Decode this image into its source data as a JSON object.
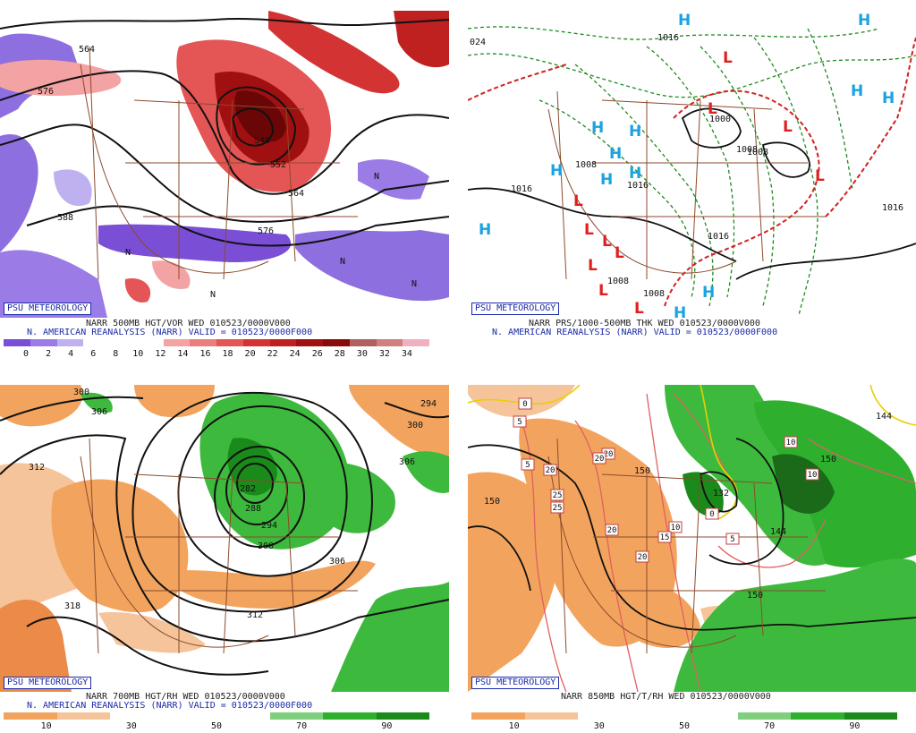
{
  "panels": [
    {
      "badge": "PSU METEOROLOGY",
      "caption1": "NARR 500MB HGT/VOR WED 010523/0000V000",
      "caption2": "N. AMERICAN REANALYSIS (NARR) VALID = 010523/0000F000",
      "colorbar": [
        "#7a4fd6",
        "#9b7be6",
        "#bfb0f0",
        "#ffffff",
        "#ffffff",
        "#ffffff",
        "#f3a3a3",
        "#ec7d7d",
        "#e45555",
        "#d43333",
        "#bf2020",
        "#a01010",
        "#8a0a0a",
        "#b06060",
        "#d08080",
        "#f0b0c0"
      ],
      "ticks": [
        "0",
        "2",
        "4",
        "6",
        "8",
        "10",
        "12",
        "14",
        "16",
        "18",
        "20",
        "22",
        "24",
        "26",
        "28",
        "30",
        "32",
        "34"
      ],
      "labels": [
        "564",
        "576",
        "540",
        "552",
        "564",
        "576",
        "588",
        "N",
        "N",
        "N",
        "N",
        "N"
      ]
    },
    {
      "badge": "PSU METEOROLOGY",
      "caption1": "NARR PRS/1000-500MB THK WED 010523/0000V000",
      "caption2": "N. AMERICAN REANALYSIS (NARR) VALID = 010523/0000F000",
      "labels": [
        "024",
        "1016",
        "1016",
        "1008",
        "1000",
        "1008",
        "1016",
        "1016",
        "1016",
        "1008",
        "1008",
        "1008"
      ],
      "highs": [
        "H",
        "H",
        "H",
        "H",
        "H",
        "H",
        "H",
        "H",
        "H",
        "H",
        "H",
        "H",
        "H"
      ],
      "lows": [
        "L",
        "L",
        "L",
        "L",
        "L",
        "L",
        "L",
        "L",
        "L",
        "L",
        "L"
      ]
    },
    {
      "badge": "PSU METEOROLOGY",
      "caption1": "NARR 700MB HGT/RH WED 010523/0000V000",
      "caption2": "N. AMERICAN REANALYSIS (NARR) VALID = 010523/0000F000",
      "colorbar": [
        "#f2a45e",
        "#f5c49a",
        "#ffffff",
        "#ffffff",
        "#ffffff",
        "#7fcf7f",
        "#2eb02e",
        "#1a8a1a"
      ],
      "ticks": [
        "10",
        "30",
        "50",
        "70",
        "90"
      ],
      "labels": [
        "300",
        "306",
        "312",
        "318",
        "282",
        "288",
        "294",
        "300",
        "306",
        "312",
        "306",
        "294",
        "300"
      ]
    },
    {
      "badge": "PSU METEOROLOGY",
      "caption1": "NARR 850MB HGT/T/RH WED 010523/0000V000",
      "caption2": "",
      "colorbar": [
        "#f2a45e",
        "#f5c49a",
        "#ffffff",
        "#ffffff",
        "#ffffff",
        "#7fcf7f",
        "#2eb02e",
        "#1a8a1a"
      ],
      "ticks": [
        "10",
        "30",
        "50",
        "70",
        "90"
      ],
      "labels": [
        "150",
        "150",
        "132",
        "144",
        "150",
        "144",
        "150"
      ],
      "boxes": [
        "5",
        "5",
        "20",
        "20",
        "20",
        "20",
        "25",
        "25",
        "10",
        "20",
        "15",
        "5",
        "10",
        "10",
        "0",
        "0"
      ]
    }
  ]
}
